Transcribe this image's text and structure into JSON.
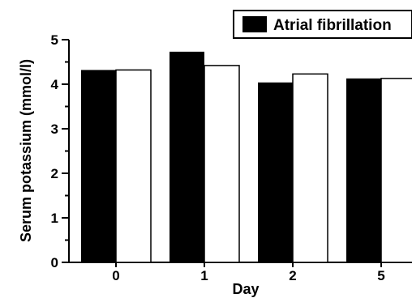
{
  "chart_data": {
    "type": "bar",
    "categories": [
      "0",
      "1",
      "2",
      "5"
    ],
    "series": [
      {
        "name": "Atrial fibrillation",
        "values": [
          4.32,
          4.73,
          4.04,
          4.13
        ],
        "color": "#000000",
        "fill": "solid"
      },
      {
        "values": [
          4.32,
          4.42,
          4.23,
          4.13
        ],
        "color": "#ffffff",
        "fill": "outline"
      }
    ],
    "xlabel": "Day",
    "ylabel": "Serum potassium (mmol/l)",
    "ylim": [
      0,
      5
    ],
    "yticks": [
      "0",
      "1",
      "2",
      "3",
      "4",
      "5"
    ],
    "grid": false,
    "legend_position": "top-right"
  }
}
